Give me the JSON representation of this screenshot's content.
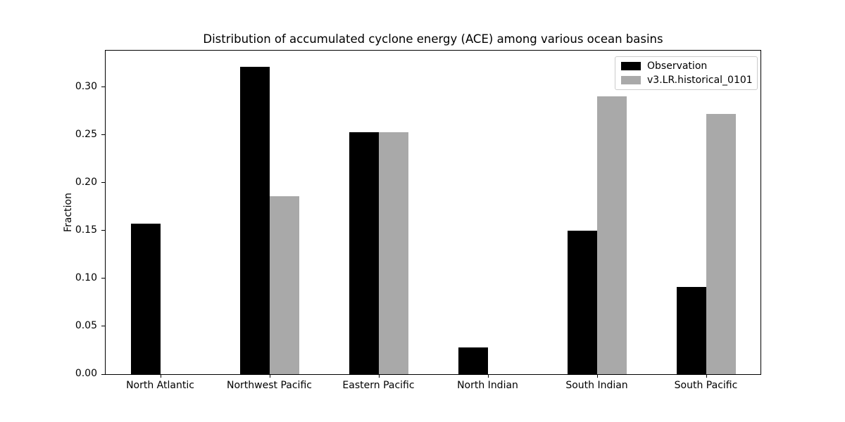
{
  "chart_data": {
    "type": "bar",
    "title": "Distribution of accumulated cyclone energy (ACE) among various ocean basins",
    "xlabel": "",
    "ylabel": "Fraction",
    "categories": [
      "North Atlantic",
      "Northwest Pacific",
      "Eastern Pacific",
      "North Indian",
      "South Indian",
      "South Pacific"
    ],
    "series": [
      {
        "name": "Observation",
        "color": "#000000",
        "values": [
          0.157,
          0.321,
          0.253,
          0.028,
          0.15,
          0.091
        ]
      },
      {
        "name": "v3.LR.historical_0101",
        "color": "#a9a9a9",
        "values": [
          0.0,
          0.186,
          0.253,
          0.0,
          0.29,
          0.272
        ]
      }
    ],
    "ylim": [
      0,
      0.338
    ],
    "yticks": [
      {
        "value": 0.0,
        "label": "0.00"
      },
      {
        "value": 0.05,
        "label": "0.05"
      },
      {
        "value": 0.1,
        "label": "0.10"
      },
      {
        "value": 0.15,
        "label": "0.15"
      },
      {
        "value": 0.2,
        "label": "0.20"
      },
      {
        "value": 0.25,
        "label": "0.25"
      },
      {
        "value": 0.3,
        "label": "0.30"
      }
    ],
    "grid": false,
    "legend_position": "upper right",
    "background": "#ffffff",
    "bar_colors": {
      "observation": "#000000",
      "model": "#a9a9a9"
    }
  }
}
